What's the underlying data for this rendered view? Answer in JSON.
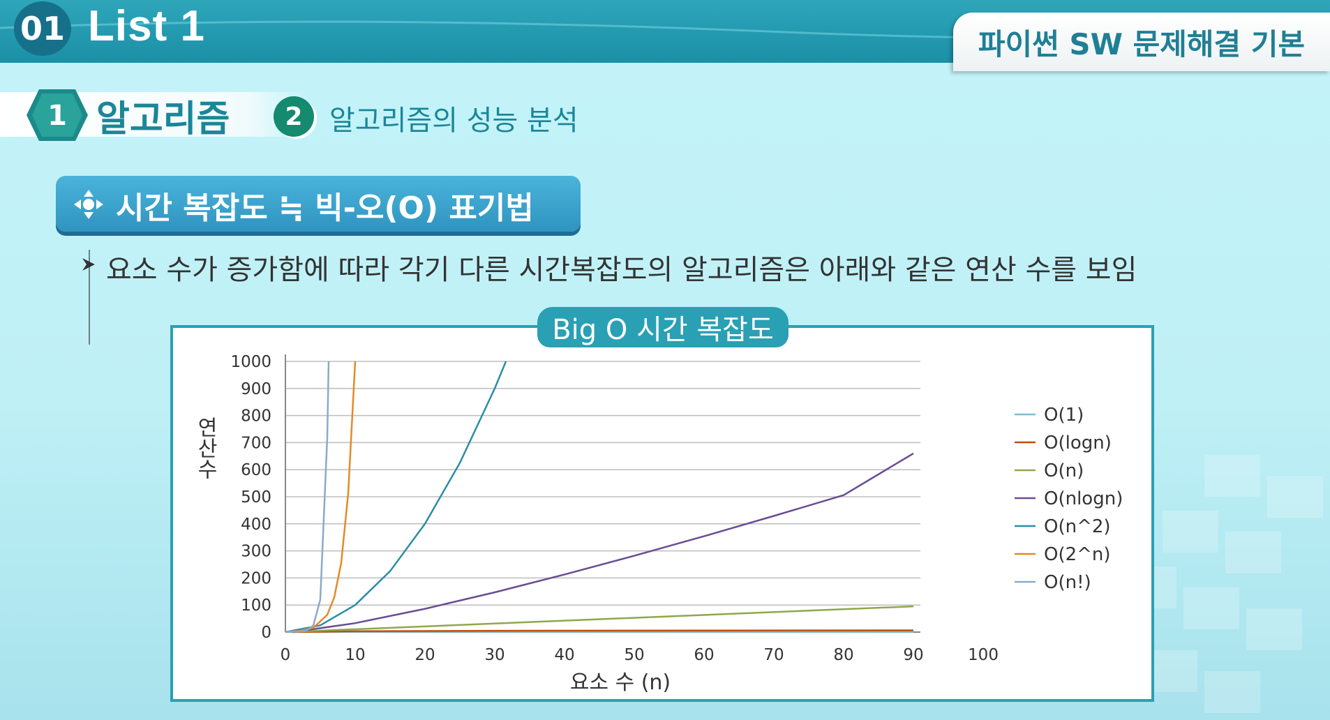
{
  "header": {
    "list_num": "01",
    "list_title": "List 1",
    "course": "파이썬 SW 문제해결 기본"
  },
  "steps": [
    {
      "num": "1",
      "label": "알고리즘"
    },
    {
      "num": "2",
      "label": "알고리즘의 성능 분석"
    }
  ],
  "section": {
    "title": "시간 복잡도 ≒ 빅-오(O) 표기법",
    "icon": "four-arrows-icon"
  },
  "description": "요소 수가 증가함에 따라 각기 다른 시간복잡도의 알고리즘은 아래와 같은 연산 수를 보임",
  "chart_tab": "Big O 시간 복잡도",
  "chart_data": {
    "type": "line",
    "xlabel": "요소 수 (n)",
    "ylabel": "연산수",
    "xlim": [
      0,
      100
    ],
    "ylim": [
      0,
      1000
    ],
    "x_ticks": [
      "0",
      "10",
      "20",
      "30",
      "40",
      "50",
      "60",
      "70",
      "80",
      "90",
      "100"
    ],
    "y_ticks": [
      "0",
      "100",
      "200",
      "300",
      "400",
      "500",
      "600",
      "700",
      "800",
      "900",
      "1000"
    ],
    "grid": true,
    "legend": "right",
    "series": [
      {
        "name": "O(1)",
        "color": "#7fbcd0",
        "points": [
          [
            1,
            1
          ],
          [
            90,
            1
          ]
        ]
      },
      {
        "name": "O(logn)",
        "color": "#c0500e",
        "points": [
          [
            1,
            0
          ],
          [
            10,
            3
          ],
          [
            30,
            5
          ],
          [
            60,
            6
          ],
          [
            90,
            6.5
          ]
        ]
      },
      {
        "name": "O(n)",
        "color": "#8ea84a",
        "points": [
          [
            0,
            0
          ],
          [
            90,
            95
          ]
        ]
      },
      {
        "name": "O(nlogn)",
        "color": "#6a4c94",
        "points": [
          [
            1,
            0
          ],
          [
            10,
            33
          ],
          [
            20,
            86
          ],
          [
            30,
            147
          ],
          [
            40,
            213
          ],
          [
            50,
            282
          ],
          [
            60,
            354
          ],
          [
            70,
            429
          ],
          [
            80,
            506
          ],
          [
            90,
            660
          ]
        ]
      },
      {
        "name": "O(n^2)",
        "color": "#2a8ea4",
        "points": [
          [
            0,
            0
          ],
          [
            5,
            25
          ],
          [
            10,
            100
          ],
          [
            15,
            225
          ],
          [
            20,
            400
          ],
          [
            25,
            625
          ],
          [
            30,
            900
          ],
          [
            31.6,
            1000
          ]
        ]
      },
      {
        "name": "O(2^n)",
        "color": "#e38a28",
        "points": [
          [
            0,
            1
          ],
          [
            2,
            4
          ],
          [
            4,
            16
          ],
          [
            6,
            64
          ],
          [
            7,
            128
          ],
          [
            8,
            256
          ],
          [
            9,
            512
          ],
          [
            10,
            1000
          ]
        ]
      },
      {
        "name": "O(n!)",
        "color": "#8aaac8",
        "points": [
          [
            0,
            1
          ],
          [
            2,
            2
          ],
          [
            3,
            6
          ],
          [
            4,
            24
          ],
          [
            5,
            120
          ],
          [
            6,
            720
          ],
          [
            6.2,
            1000
          ]
        ]
      }
    ]
  }
}
